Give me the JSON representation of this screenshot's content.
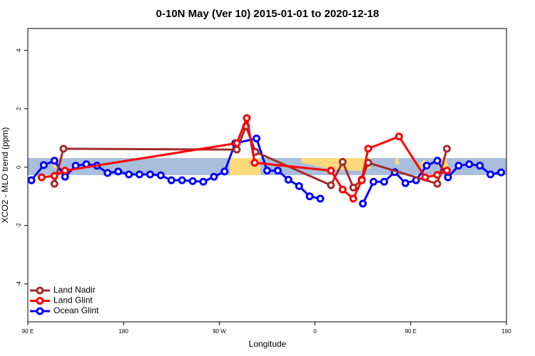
{
  "chart_data": {
    "type": "line",
    "title": "0-10N May (Ver 10)   2015-01-01 to 2020-12-18",
    "x_label": "Longitude",
    "y_label": "XCO2 - MLO trend (ppm)",
    "xlim": [
      90,
      540
    ],
    "ylim": [
      -5.3,
      4.75
    ],
    "xticks": [
      {
        "value": 90,
        "label": "90 E"
      },
      180,
      {
        "value": 270,
        "label": "90 W"
      },
      {
        "value": 360,
        "label": "0"
      },
      {
        "value": 450,
        "label": "90 E"
      },
      {
        "value": 540,
        "label": "180"
      }
    ],
    "yticks": [
      -4,
      -2,
      0,
      2,
      4
    ],
    "legend": "bottom-left",
    "series": [
      {
        "name": "Land Nadir",
        "color": "#a52a2a",
        "x": [
          115,
          123.5,
          286.5,
          295.2,
          304,
          375,
          386,
          396,
          404,
          410,
          475,
          484
        ],
        "values": [
          -0.57,
          0.63,
          0.6,
          1.4,
          0.52,
          -0.62,
          0.18,
          -0.7,
          -0.42,
          0.15,
          -0.57,
          0.63
        ]
      },
      {
        "name": "Land Glint",
        "color": "#ff0000",
        "x": [
          103,
          115,
          125,
          286.5,
          295.9,
          303.3,
          375,
          386,
          396,
          404,
          410,
          439,
          463.6,
          475,
          484
        ],
        "values": [
          -0.35,
          -0.3,
          -0.12,
          0.82,
          1.68,
          0.15,
          -0.12,
          -0.77,
          -1.08,
          -0.45,
          0.63,
          1.05,
          -0.35,
          -0.27,
          -0.12
        ]
      },
      {
        "name": "Ocean Glint",
        "color": "#0000ff",
        "x": [
          93.4,
          105,
          115,
          125,
          135,
          145,
          155,
          165,
          175,
          185,
          195,
          205,
          215,
          225,
          235,
          245,
          255,
          265,
          275,
          285,
          305,
          315,
          325,
          335,
          345,
          355,
          365,
          375,
          385,
          395,
          405,
          415,
          425,
          435,
          445,
          455,
          465,
          475,
          485,
          495,
          505,
          515,
          525,
          535
        ],
        "values": [
          -0.45,
          0.07,
          0.22,
          -0.33,
          0.05,
          0.1,
          0.05,
          -0.2,
          -0.15,
          -0.25,
          -0.25,
          -0.25,
          -0.28,
          -0.45,
          -0.45,
          -0.48,
          -0.5,
          -0.33,
          -0.15,
          0.82,
          0.98,
          -0.12,
          -0.12,
          -0.43,
          -0.65,
          -1.0,
          -1.08,
          null,
          null,
          null,
          -1.25,
          -0.5,
          -0.5,
          -0.17,
          -0.55,
          -0.45,
          0.05,
          0.22,
          -0.35,
          0.05,
          0.1,
          0.05,
          -0.25,
          -0.18
        ]
      }
    ]
  }
}
